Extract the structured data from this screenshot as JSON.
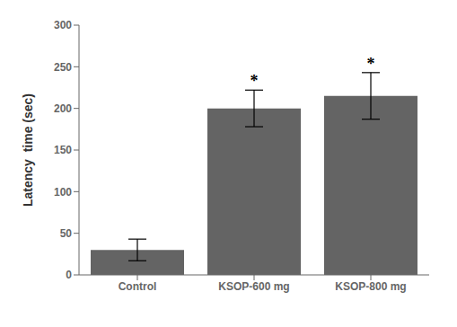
{
  "chart_data": {
    "type": "bar",
    "categories": [
      "Control",
      "KSOP-600 mg",
      "KSOP-800 mg"
    ],
    "values": [
      30,
      200,
      215
    ],
    "errors": [
      13,
      22,
      28
    ],
    "color": "#646464",
    "ylabel": "Latency  time (sec)",
    "ylim": [
      0,
      300
    ],
    "yticks": [
      0,
      50,
      100,
      150,
      200,
      250,
      300
    ],
    "grid": false,
    "annotations": [
      {
        "text": "*",
        "category": "KSOP-600 mg"
      },
      {
        "text": "*",
        "category": "KSOP-800 mg"
      }
    ]
  }
}
